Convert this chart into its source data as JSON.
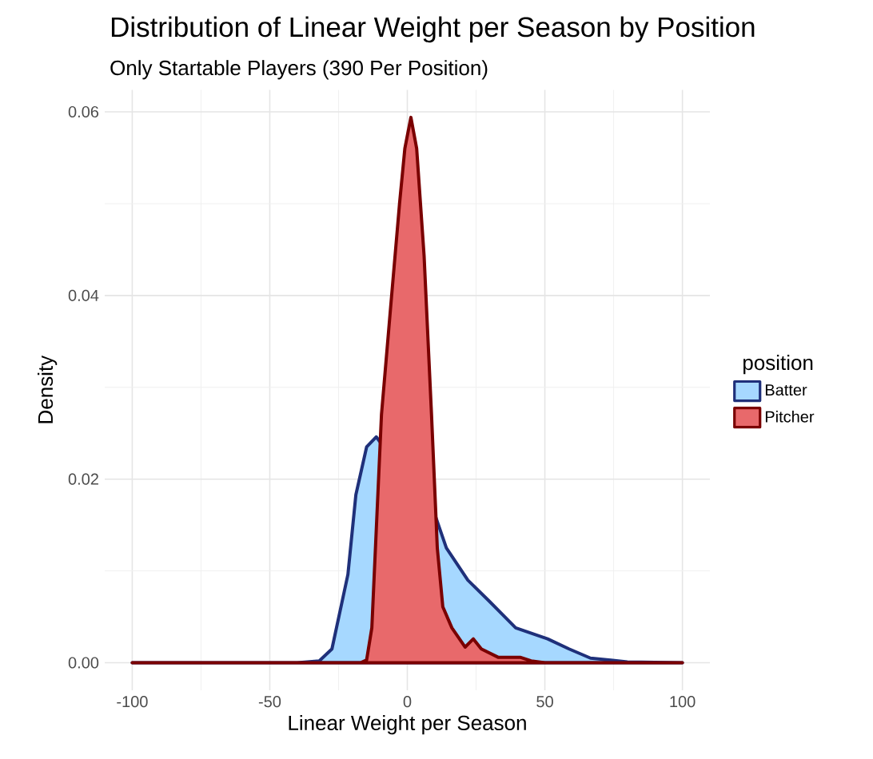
{
  "chart_data": {
    "type": "area",
    "title": "Distribution of Linear Weight per Season by Position",
    "subtitle": "Only Startable Players (390 Per Position)",
    "xlabel": "Linear Weight per Season",
    "ylabel": "Density",
    "legend_title": "position",
    "legend": "right",
    "grid": true,
    "xlim": [
      -110,
      110
    ],
    "ylim": [
      -0.003,
      0.0624
    ],
    "xticks": [
      -100,
      -50,
      0,
      50,
      100
    ],
    "yticks": [
      {
        "value": 0,
        "label": "0.00"
      },
      {
        "value": 0.02,
        "label": "0.02"
      },
      {
        "value": 0.04,
        "label": "0.04"
      },
      {
        "value": 0.06,
        "label": "0.06"
      }
    ],
    "series": [
      {
        "name": "Batter",
        "color": "#a6d8ff",
        "x": [
          -100,
          -40,
          -32,
          -27.4,
          -21.6,
          -18.7,
          -14.8,
          -11.3,
          10.3,
          14.2,
          22,
          29.8,
          39.4,
          51,
          58.8,
          66.6,
          80,
          100
        ],
        "values": [
          0,
          0,
          0.0002,
          0.0015,
          0.0096,
          0.0183,
          0.0235,
          0.0246,
          0.0159,
          0.0125,
          0.009,
          0.0067,
          0.0038,
          0.0026,
          0.0015,
          0.0005,
          0.0001,
          0
        ]
      },
      {
        "name": "Pitcher",
        "color": "#e8696b",
        "x": [
          -100,
          -17,
          -14.8,
          -12.9,
          -9.4,
          -6.1,
          -2.8,
          -0.9,
          1.3,
          3.4,
          6.1,
          8.8,
          10.9,
          12.9,
          16.2,
          21,
          24,
          26.9,
          33,
          41,
          45,
          50,
          100
        ],
        "values": [
          0,
          0,
          0.0003,
          0.0038,
          0.027,
          0.0386,
          0.0501,
          0.056,
          0.0594,
          0.056,
          0.0443,
          0.027,
          0.0125,
          0.0061,
          0.0038,
          0.0017,
          0.0026,
          0.0015,
          0.0006,
          0.0006,
          0.0002,
          0,
          0
        ]
      }
    ]
  }
}
